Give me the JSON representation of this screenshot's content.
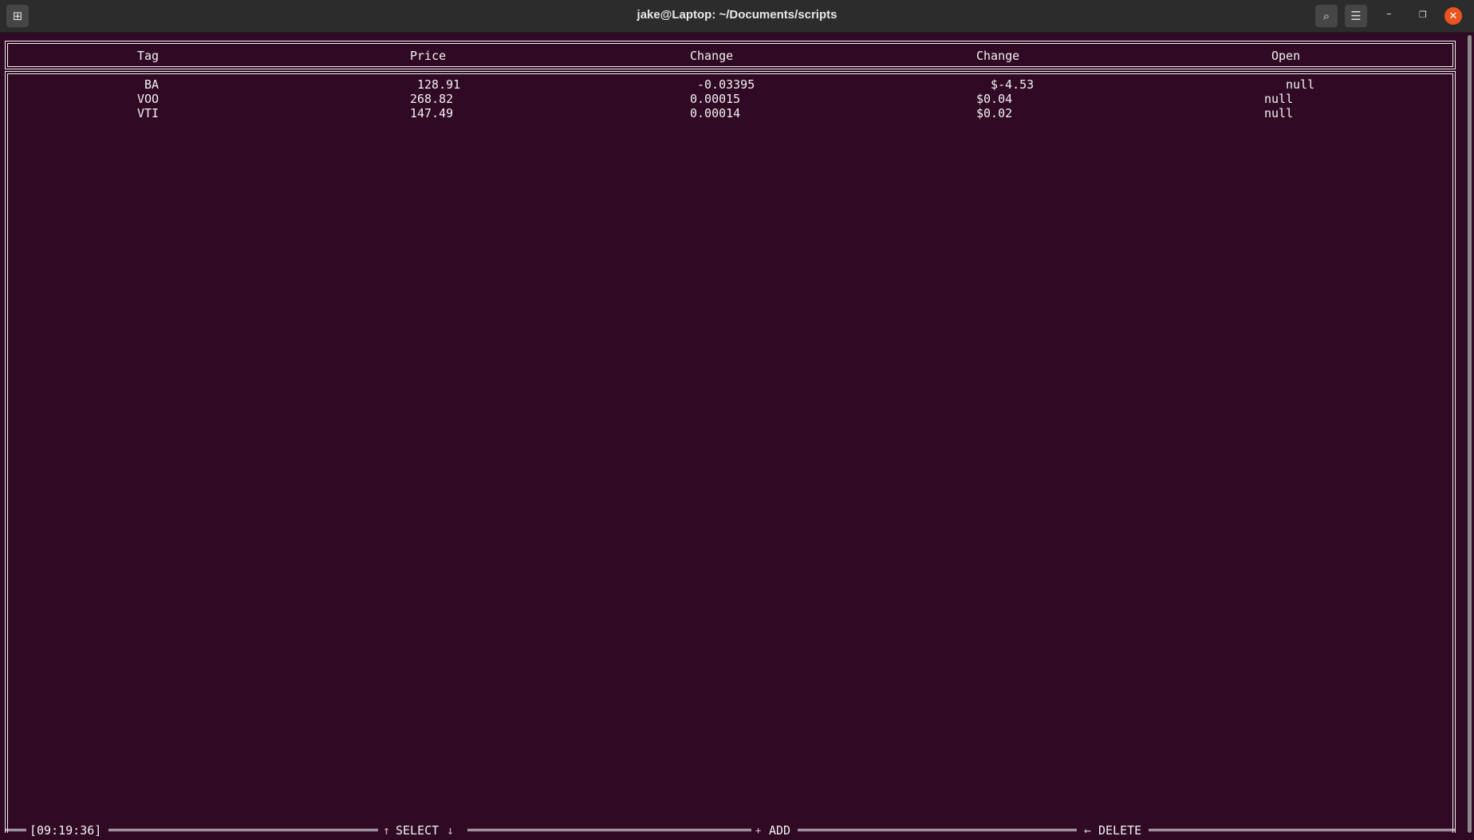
{
  "window": {
    "title": "jake@Laptop: ~/Documents/scripts",
    "new_tab_icon": "new-tab-icon",
    "search_icon": "search-icon",
    "menu_icon": "hamburger-menu-icon",
    "accent_close": "#e95420"
  },
  "table": {
    "headers": [
      "Tag",
      "Price",
      "Change",
      "Change",
      "Open"
    ],
    "rows": [
      [
        "BA",
        "128.91",
        "-0.03395",
        "$-4.53",
        "null"
      ],
      [
        "VOO",
        "268.82",
        "0.00015",
        "$0.04",
        "null"
      ],
      [
        "VTI",
        "147.49",
        "0.00014",
        "$0.02",
        "null"
      ]
    ]
  },
  "footer": {
    "time": "[09:19:36]",
    "up_arrow": "↑",
    "select": "SELECT",
    "down_arrow": "↓",
    "add_symbol": "+",
    "add": "ADD",
    "left_arrow": "←",
    "delete": "DELETE"
  },
  "colors": {
    "background": "#300a24",
    "titlebar": "#2c2c2c"
  }
}
